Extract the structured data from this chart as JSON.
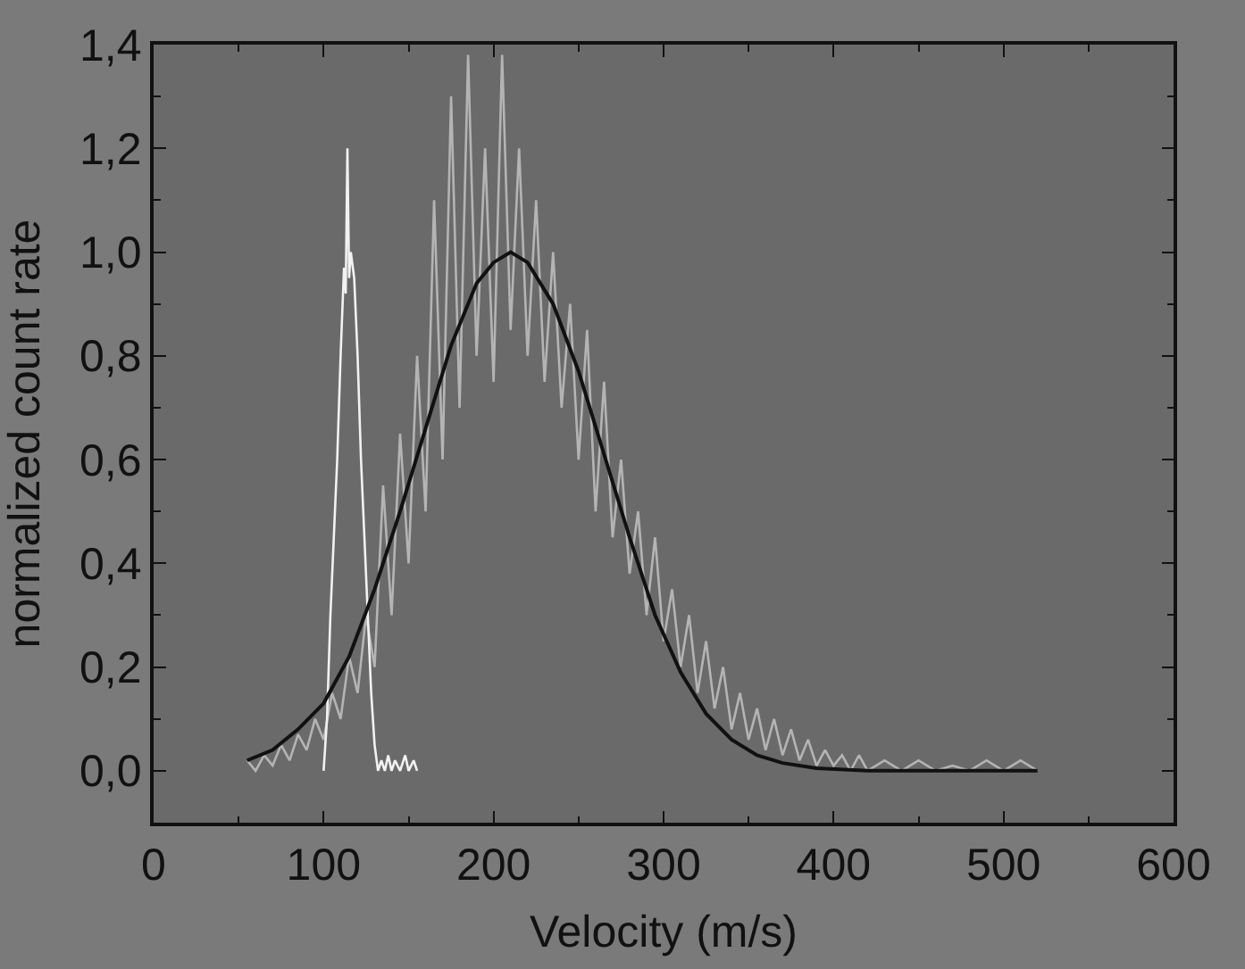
{
  "chart_data": {
    "type": "line",
    "xlabel": "Velocity (m/s)",
    "ylabel": "normalized count rate",
    "xlim": [
      0,
      600
    ],
    "xticks": [
      0,
      {
        "value": 50,
        "label": null
      },
      100,
      {
        "value": 150,
        "label": null
      },
      200,
      {
        "value": 250,
        "label": null
      },
      300,
      {
        "value": 350,
        "label": null
      },
      400,
      {
        "value": 450,
        "label": null
      },
      500,
      {
        "value": 550,
        "label": null
      },
      600
    ],
    "ylim": [
      -0.1,
      1.4
    ],
    "yticks": [
      {
        "value": 0.0,
        "label": "0,0"
      },
      {
        "value": 0.1,
        "label": null
      },
      {
        "value": 0.2,
        "label": "0,2"
      },
      {
        "value": 0.3,
        "label": null
      },
      {
        "value": 0.4,
        "label": "0,4"
      },
      {
        "value": 0.5,
        "label": null
      },
      {
        "value": 0.6,
        "label": "0,6"
      },
      {
        "value": 0.7,
        "label": null
      },
      {
        "value": 0.8,
        "label": "0,8"
      },
      {
        "value": 0.9,
        "label": null
      },
      {
        "value": 1.0,
        "label": "1,0"
      },
      {
        "value": 1.1,
        "label": null
      },
      {
        "value": 1.2,
        "label": "1,2"
      },
      {
        "value": 1.3,
        "label": null
      },
      {
        "value": 1.4,
        "label": "1,4"
      }
    ],
    "marker": "none",
    "line_style": "solid",
    "series": [
      {
        "color": "#b4b4b4",
        "x": [
          55,
          60,
          65,
          70,
          75,
          80,
          85,
          90,
          95,
          100,
          105,
          110,
          115,
          120,
          125,
          130,
          135,
          140,
          145,
          150,
          155,
          160,
          165,
          170,
          175,
          180,
          185,
          190,
          195,
          200,
          205,
          210,
          215,
          220,
          225,
          230,
          235,
          240,
          245,
          250,
          255,
          260,
          265,
          270,
          275,
          280,
          285,
          290,
          295,
          300,
          305,
          310,
          315,
          320,
          325,
          330,
          335,
          340,
          345,
          350,
          355,
          360,
          365,
          370,
          375,
          380,
          385,
          390,
          395,
          400,
          405,
          410,
          415,
          420,
          430,
          440,
          450,
          460,
          470,
          480,
          490,
          500,
          510,
          520
        ],
        "values": [
          0.02,
          0.0,
          0.03,
          0.01,
          0.05,
          0.02,
          0.07,
          0.04,
          0.1,
          0.06,
          0.15,
          0.1,
          0.22,
          0.15,
          0.3,
          0.2,
          0.55,
          0.3,
          0.65,
          0.4,
          0.8,
          0.5,
          1.1,
          0.6,
          1.3,
          0.7,
          1.38,
          0.8,
          1.2,
          0.75,
          1.38,
          0.85,
          1.2,
          0.8,
          1.1,
          0.75,
          1.0,
          0.7,
          0.9,
          0.6,
          0.85,
          0.5,
          0.75,
          0.45,
          0.6,
          0.38,
          0.5,
          0.3,
          0.45,
          0.25,
          0.35,
          0.2,
          0.3,
          0.15,
          0.25,
          0.12,
          0.2,
          0.08,
          0.15,
          0.06,
          0.12,
          0.04,
          0.1,
          0.03,
          0.08,
          0.02,
          0.06,
          0.01,
          0.04,
          0.01,
          0.03,
          0.0,
          0.03,
          0.0,
          0.02,
          0.0,
          0.02,
          0.0,
          0.01,
          0.0,
          0.02,
          0.0,
          0.02,
          0.0
        ]
      },
      {
        "color": "#f2f2f2",
        "x": [
          100,
          102,
          104,
          106,
          108,
          110,
          112,
          113,
          114,
          115,
          116,
          118,
          120,
          122,
          124,
          126,
          128,
          130,
          132,
          134,
          136,
          138,
          140,
          142,
          145,
          148,
          150,
          153,
          155
        ],
        "values": [
          0.0,
          0.1,
          0.3,
          0.45,
          0.6,
          0.8,
          0.97,
          0.92,
          1.2,
          0.95,
          1.0,
          0.95,
          0.8,
          0.6,
          0.45,
          0.3,
          0.15,
          0.05,
          0.0,
          0.02,
          0.0,
          0.03,
          0.0,
          0.02,
          0.0,
          0.03,
          0.0,
          0.02,
          0.0
        ]
      },
      {
        "color": "#111111",
        "x": [
          55,
          70,
          85,
          100,
          115,
          130,
          145,
          160,
          175,
          190,
          200,
          210,
          220,
          235,
          250,
          265,
          280,
          295,
          310,
          325,
          340,
          355,
          370,
          390,
          420,
          460,
          520
        ],
        "values": [
          0.02,
          0.04,
          0.08,
          0.13,
          0.22,
          0.35,
          0.5,
          0.66,
          0.82,
          0.94,
          0.98,
          1.0,
          0.98,
          0.9,
          0.77,
          0.61,
          0.45,
          0.3,
          0.19,
          0.11,
          0.06,
          0.03,
          0.015,
          0.005,
          0.0,
          0.0,
          0.0
        ]
      }
    ]
  }
}
